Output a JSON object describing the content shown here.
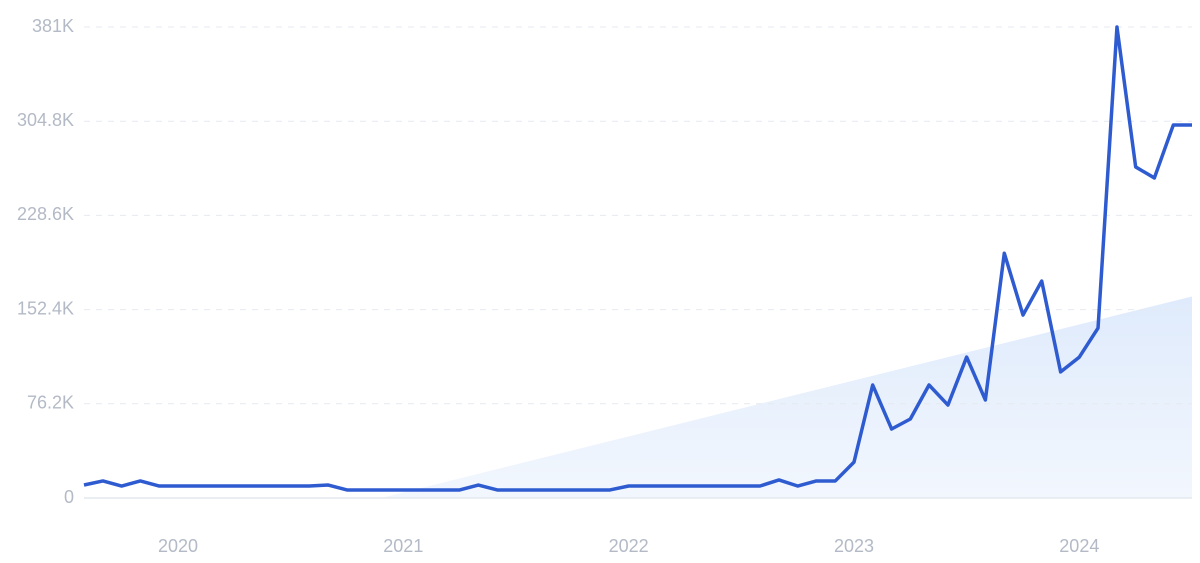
{
  "chart_data": {
    "type": "line",
    "x": [
      2019.583,
      2019.667,
      2019.75,
      2019.833,
      2019.917,
      2020.0,
      2020.083,
      2020.167,
      2020.25,
      2020.333,
      2020.417,
      2020.5,
      2020.583,
      2020.667,
      2020.75,
      2020.833,
      2020.917,
      2021.0,
      2021.083,
      2021.167,
      2021.25,
      2021.333,
      2021.417,
      2021.5,
      2021.583,
      2021.667,
      2021.75,
      2021.833,
      2021.917,
      2022.0,
      2022.083,
      2022.167,
      2022.25,
      2022.333,
      2022.417,
      2022.5,
      2022.583,
      2022.667,
      2022.75,
      2022.833,
      2022.917,
      2023.0,
      2023.083,
      2023.167,
      2023.25,
      2023.333,
      2023.417,
      2023.5,
      2023.583,
      2023.667,
      2023.75,
      2023.833,
      2023.917,
      2024.0,
      2024.083,
      2024.167,
      2024.25,
      2024.333,
      2024.417,
      2024.5
    ],
    "series": [
      {
        "color": "#2f5bd0",
        "values": [
          10500,
          13800,
          9700,
          13800,
          9700,
          9700,
          9700,
          9700,
          9700,
          9700,
          9700,
          9700,
          9700,
          10500,
          6500,
          6500,
          6500,
          6500,
          6500,
          6500,
          6500,
          10500,
          6500,
          6500,
          6500,
          6500,
          6500,
          6500,
          6500,
          9700,
          9700,
          9700,
          9700,
          9700,
          9700,
          9700,
          9700,
          14600,
          9700,
          13800,
          13800,
          29000,
          91400,
          55800,
          63900,
          91400,
          75200,
          114000,
          79300,
          198000,
          148000,
          175500,
          102000,
          114000,
          137500,
          381000,
          267800,
          258900,
          301700,
          301700
        ]
      }
    ],
    "trend": {
      "color": "#dbe8fb",
      "x": [
        2020.9,
        2024.5
      ],
      "values": [
        0,
        163000
      ]
    },
    "xlim": [
      2019.583,
      2024.5
    ],
    "xticks": [
      2020,
      2021,
      2022,
      2023,
      2024
    ],
    "ylim": [
      0,
      381000
    ],
    "yticks": [
      0,
      {
        "value": 76200,
        "label": "76.2K"
      },
      {
        "value": 152400,
        "label": "152.4K"
      },
      {
        "value": 228600,
        "label": "228.6K"
      },
      {
        "value": 304800,
        "label": "304.8K"
      },
      {
        "value": 381000,
        "label": "381K"
      }
    ],
    "grid": true
  }
}
